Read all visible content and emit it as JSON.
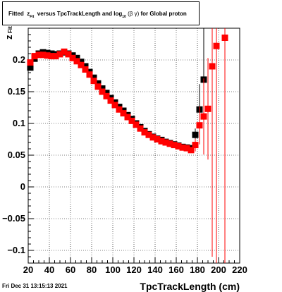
{
  "title": {
    "fitted": "Fitted",
    "z": "z",
    "z_sub": "Fit",
    "versus": "versus TpcTrackLength and log",
    "log_sub": "10",
    "beta": "(β",
    "gamma": "γ)",
    "tail": "for Global proton"
  },
  "footer": "Fri Dec 31 13:15:13 2021",
  "chart_data": {
    "type": "scatter",
    "xlabel": "TpcTrackLength (cm)",
    "ylabel": "z",
    "ylabel_sub": "Fit",
    "xlim": [
      20,
      220
    ],
    "ylim": [
      -0.12,
      0.25
    ],
    "xticks": [
      20,
      40,
      60,
      80,
      100,
      120,
      140,
      160,
      180,
      200,
      220
    ],
    "yticks": [
      0.2,
      0.15,
      0.1,
      0.05,
      0,
      -0.05,
      -0.1
    ],
    "ytick_labels": [
      "0.2",
      "0.15",
      "0.1",
      "0.05",
      "0",
      "−0.05",
      "−0.1"
    ],
    "grid": true,
    "colors": {
      "series_black": "#000000",
      "series_red": "#ff0000"
    },
    "series": [
      {
        "marker": "square",
        "color": "#000000",
        "points": [
          [
            22,
            0.188
          ],
          [
            26,
            0.202
          ],
          [
            30,
            0.21
          ],
          [
            34,
            0.212
          ],
          [
            38,
            0.211
          ],
          [
            42,
            0.21
          ],
          [
            46,
            0.209
          ],
          [
            50,
            0.21
          ],
          [
            54,
            0.212
          ],
          [
            58,
            0.21
          ],
          [
            62,
            0.207
          ],
          [
            66,
            0.203
          ],
          [
            70,
            0.197
          ],
          [
            74,
            0.19
          ],
          [
            78,
            0.181
          ],
          [
            82,
            0.172
          ],
          [
            86,
            0.163
          ],
          [
            90,
            0.155
          ],
          [
            94,
            0.148
          ],
          [
            98,
            0.14
          ],
          [
            102,
            0.133
          ],
          [
            106,
            0.126
          ],
          [
            110,
            0.12
          ],
          [
            114,
            0.113
          ],
          [
            118,
            0.107
          ],
          [
            122,
            0.1
          ],
          [
            126,
            0.094
          ],
          [
            130,
            0.088
          ],
          [
            134,
            0.083
          ],
          [
            138,
            0.079
          ],
          [
            142,
            0.076
          ],
          [
            146,
            0.074
          ],
          [
            150,
            0.071
          ],
          [
            154,
            0.069
          ],
          [
            158,
            0.067
          ],
          [
            162,
            0.065
          ],
          [
            166,
            0.063
          ],
          [
            170,
            0.062
          ],
          [
            174,
            0.061
          ],
          [
            178,
            0.082
          ],
          [
            182,
            0.122
          ],
          [
            186,
            0.169
          ]
        ],
        "errors": [
          0.002,
          0.001,
          0.001,
          0.001,
          0.001,
          0.001,
          0.001,
          0.001,
          0.001,
          0.001,
          0.001,
          0.001,
          0.001,
          0.001,
          0.001,
          0.001,
          0.001,
          0.001,
          0.001,
          0.001,
          0.001,
          0.001,
          0.001,
          0.001,
          0.001,
          0.001,
          0.001,
          0.001,
          0.001,
          0.001,
          0.001,
          0.001,
          0.001,
          0.001,
          0.001,
          0.001,
          0.001,
          0.001,
          0.002,
          0.01,
          0.04,
          0.09
        ]
      },
      {
        "marker": "square",
        "color": "#ff0000",
        "points": [
          [
            22,
            0.196
          ],
          [
            26,
            0.206
          ],
          [
            30,
            0.208
          ],
          [
            34,
            0.208
          ],
          [
            38,
            0.207
          ],
          [
            42,
            0.206
          ],
          [
            46,
            0.206
          ],
          [
            50,
            0.209
          ],
          [
            54,
            0.213
          ],
          [
            58,
            0.209
          ],
          [
            62,
            0.203
          ],
          [
            66,
            0.198
          ],
          [
            70,
            0.192
          ],
          [
            74,
            0.185
          ],
          [
            78,
            0.177
          ],
          [
            82,
            0.167
          ],
          [
            86,
            0.158
          ],
          [
            90,
            0.15
          ],
          [
            94,
            0.143
          ],
          [
            98,
            0.136
          ],
          [
            102,
            0.129
          ],
          [
            106,
            0.122
          ],
          [
            110,
            0.116
          ],
          [
            114,
            0.11
          ],
          [
            118,
            0.104
          ],
          [
            122,
            0.098
          ],
          [
            126,
            0.092
          ],
          [
            130,
            0.086
          ],
          [
            134,
            0.082
          ],
          [
            138,
            0.078
          ],
          [
            142,
            0.075
          ],
          [
            146,
            0.072
          ],
          [
            150,
            0.07
          ],
          [
            154,
            0.068
          ],
          [
            158,
            0.066
          ],
          [
            162,
            0.064
          ],
          [
            166,
            0.062
          ],
          [
            170,
            0.061
          ],
          [
            174,
            0.058
          ],
          [
            178,
            0.066
          ],
          [
            182,
            0.097
          ],
          [
            186,
            0.111
          ],
          [
            190,
            0.123
          ],
          [
            194,
            0.19
          ],
          [
            198,
            0.222
          ],
          [
            206,
            0.235
          ]
        ],
        "errors": [
          0.001,
          0.001,
          0.001,
          0.001,
          0.001,
          0.001,
          0.001,
          0.001,
          0.001,
          0.001,
          0.001,
          0.001,
          0.001,
          0.001,
          0.001,
          0.001,
          0.001,
          0.001,
          0.001,
          0.001,
          0.001,
          0.001,
          0.001,
          0.001,
          0.001,
          0.001,
          0.001,
          0.001,
          0.001,
          0.001,
          0.001,
          0.001,
          0.001,
          0.001,
          0.001,
          0.001,
          0.001,
          0.001,
          0.003,
          0.01,
          0.03,
          0.06,
          0.08,
          0.3,
          0.4,
          0.6
        ]
      }
    ]
  }
}
